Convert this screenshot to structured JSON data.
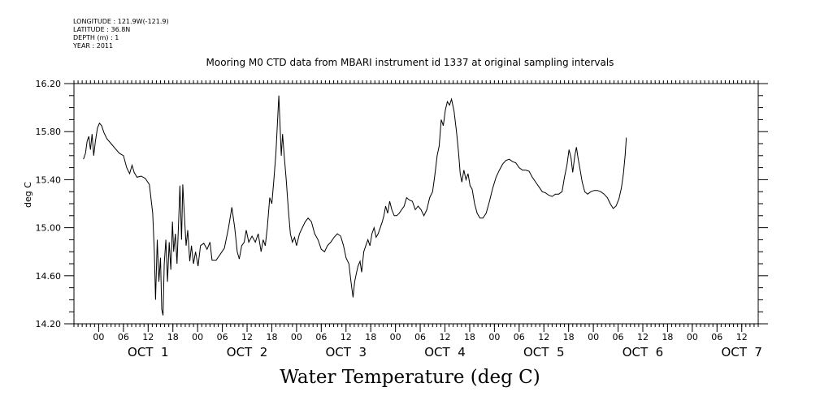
{
  "header": {
    "longitude": "LONGITUDE : 121.9W(-121.9)",
    "latitude": "LATITUDE : 36.8N",
    "depth": "DEPTH (m) : 1",
    "year": "YEAR : 2011"
  },
  "chart_data": {
    "type": "line",
    "title": "Mooring M0 CTD data from MBARI instrument id 1337 at original sampling intervals",
    "xlabel": "Water Temperature (deg C)",
    "ylabel": "deg C",
    "ylim": [
      14.2,
      16.2
    ],
    "xlim": [
      -6,
      160
    ],
    "x_unit": "hours since OCT 1 00:00",
    "y_ticks": [
      "14.20",
      "14.60",
      "15.00",
      "15.40",
      "15.80",
      "16.20"
    ],
    "x_tick_labels": [
      {
        "x": 0,
        "label": "00"
      },
      {
        "x": 6,
        "label": "06"
      },
      {
        "x": 12,
        "label": "12"
      },
      {
        "x": 18,
        "label": "18"
      },
      {
        "x": 24,
        "label": "00"
      },
      {
        "x": 30,
        "label": "06"
      },
      {
        "x": 36,
        "label": "12"
      },
      {
        "x": 42,
        "label": "18"
      },
      {
        "x": 48,
        "label": "00"
      },
      {
        "x": 54,
        "label": "06"
      },
      {
        "x": 60,
        "label": "12"
      },
      {
        "x": 66,
        "label": "18"
      },
      {
        "x": 72,
        "label": "00"
      },
      {
        "x": 78,
        "label": "06"
      },
      {
        "x": 84,
        "label": "12"
      },
      {
        "x": 90,
        "label": "18"
      },
      {
        "x": 96,
        "label": "00"
      },
      {
        "x": 102,
        "label": "06"
      },
      {
        "x": 108,
        "label": "12"
      },
      {
        "x": 114,
        "label": "18"
      },
      {
        "x": 120,
        "label": "00"
      },
      {
        "x": 126,
        "label": "06"
      },
      {
        "x": 132,
        "label": "12"
      },
      {
        "x": 138,
        "label": "18"
      },
      {
        "x": 144,
        "label": "00"
      },
      {
        "x": 150,
        "label": "06"
      },
      {
        "x": 156,
        "label": "12"
      }
    ],
    "day_labels": [
      {
        "x": 12,
        "label": "OCT  1"
      },
      {
        "x": 36,
        "label": "OCT  2"
      },
      {
        "x": 60,
        "label": "OCT  3"
      },
      {
        "x": 84,
        "label": "OCT  4"
      },
      {
        "x": 108,
        "label": "OCT  5"
      },
      {
        "x": 132,
        "label": "OCT  6"
      },
      {
        "x": 156,
        "label": "OCT  7"
      }
    ],
    "series": [
      {
        "points": [
          [
            -3.7,
            15.57
          ],
          [
            -3.2,
            15.62
          ],
          [
            -2.8,
            15.72
          ],
          [
            -2.4,
            15.76
          ],
          [
            -2.0,
            15.65
          ],
          [
            -1.6,
            15.78
          ],
          [
            -1.2,
            15.6
          ],
          [
            -0.8,
            15.72
          ],
          [
            -0.3,
            15.83
          ],
          [
            0.2,
            15.87
          ],
          [
            0.7,
            15.85
          ],
          [
            1.3,
            15.79
          ],
          [
            2.0,
            15.74
          ],
          [
            3.0,
            15.7
          ],
          [
            4.0,
            15.66
          ],
          [
            5.0,
            15.62
          ],
          [
            6.0,
            15.6
          ],
          [
            6.8,
            15.5
          ],
          [
            7.5,
            15.45
          ],
          [
            8.1,
            15.52
          ],
          [
            8.6,
            15.46
          ],
          [
            9.3,
            15.42
          ],
          [
            10.3,
            15.43
          ],
          [
            11.3,
            15.41
          ],
          [
            12.3,
            15.36
          ],
          [
            13.1,
            15.12
          ],
          [
            13.5,
            14.8
          ],
          [
            13.8,
            14.4
          ],
          [
            14.2,
            14.9
          ],
          [
            14.6,
            14.55
          ],
          [
            15.0,
            14.75
          ],
          [
            15.3,
            14.32
          ],
          [
            15.6,
            14.27
          ],
          [
            15.9,
            14.7
          ],
          [
            16.3,
            14.9
          ],
          [
            16.7,
            14.55
          ],
          [
            17.1,
            14.88
          ],
          [
            17.5,
            14.65
          ],
          [
            17.9,
            15.05
          ],
          [
            18.2,
            14.8
          ],
          [
            18.6,
            14.95
          ],
          [
            19.0,
            14.7
          ],
          [
            19.4,
            15.05
          ],
          [
            19.7,
            15.35
          ],
          [
            20.1,
            14.9
          ],
          [
            20.4,
            15.36
          ],
          [
            20.8,
            15.1
          ],
          [
            21.2,
            14.85
          ],
          [
            21.6,
            14.98
          ],
          [
            22.1,
            14.72
          ],
          [
            22.5,
            14.85
          ],
          [
            23.0,
            14.7
          ],
          [
            23.5,
            14.8
          ],
          [
            24.1,
            14.68
          ],
          [
            24.7,
            14.85
          ],
          [
            25.5,
            14.87
          ],
          [
            26.3,
            14.82
          ],
          [
            27.0,
            14.88
          ],
          [
            27.5,
            14.73
          ],
          [
            28.5,
            14.73
          ],
          [
            29.5,
            14.78
          ],
          [
            30.5,
            14.83
          ],
          [
            31.5,
            15.0
          ],
          [
            32.3,
            15.17
          ],
          [
            33.0,
            15.0
          ],
          [
            33.6,
            14.8
          ],
          [
            34.1,
            14.74
          ],
          [
            34.7,
            14.85
          ],
          [
            35.3,
            14.88
          ],
          [
            35.8,
            14.98
          ],
          [
            36.4,
            14.88
          ],
          [
            37.2,
            14.93
          ],
          [
            38.0,
            14.88
          ],
          [
            38.7,
            14.95
          ],
          [
            39.4,
            14.8
          ],
          [
            39.9,
            14.9
          ],
          [
            40.4,
            14.85
          ],
          [
            40.9,
            15.0
          ],
          [
            41.5,
            15.25
          ],
          [
            42.0,
            15.2
          ],
          [
            42.5,
            15.4
          ],
          [
            43.0,
            15.62
          ],
          [
            43.4,
            15.9
          ],
          [
            43.7,
            16.1
          ],
          [
            44.0,
            15.85
          ],
          [
            44.3,
            15.6
          ],
          [
            44.6,
            15.78
          ],
          [
            45.0,
            15.6
          ],
          [
            45.5,
            15.4
          ],
          [
            46.0,
            15.15
          ],
          [
            46.5,
            14.95
          ],
          [
            47.0,
            14.88
          ],
          [
            47.5,
            14.92
          ],
          [
            48.0,
            14.85
          ],
          [
            48.7,
            14.95
          ],
          [
            49.4,
            15.0
          ],
          [
            50.1,
            15.05
          ],
          [
            50.8,
            15.08
          ],
          [
            51.6,
            15.05
          ],
          [
            52.4,
            14.95
          ],
          [
            53.2,
            14.9
          ],
          [
            54.0,
            14.82
          ],
          [
            54.8,
            14.8
          ],
          [
            55.5,
            14.85
          ],
          [
            56.3,
            14.88
          ],
          [
            57.1,
            14.92
          ],
          [
            57.9,
            14.95
          ],
          [
            58.7,
            14.93
          ],
          [
            59.4,
            14.85
          ],
          [
            60.0,
            14.75
          ],
          [
            60.7,
            14.7
          ],
          [
            61.2,
            14.55
          ],
          [
            61.7,
            14.42
          ],
          [
            62.1,
            14.55
          ],
          [
            62.5,
            14.62
          ],
          [
            62.9,
            14.68
          ],
          [
            63.4,
            14.72
          ],
          [
            63.8,
            14.63
          ],
          [
            64.3,
            14.8
          ],
          [
            64.8,
            14.85
          ],
          [
            65.3,
            14.9
          ],
          [
            65.8,
            14.85
          ],
          [
            66.3,
            14.95
          ],
          [
            66.8,
            15.0
          ],
          [
            67.3,
            14.92
          ],
          [
            67.8,
            14.95
          ],
          [
            68.3,
            15.0
          ],
          [
            68.8,
            15.05
          ],
          [
            69.2,
            15.1
          ],
          [
            69.6,
            15.18
          ],
          [
            70.1,
            15.12
          ],
          [
            70.6,
            15.22
          ],
          [
            71.1,
            15.15
          ],
          [
            71.7,
            15.1
          ],
          [
            72.3,
            15.1
          ],
          [
            72.9,
            15.12
          ],
          [
            73.5,
            15.15
          ],
          [
            74.1,
            15.18
          ],
          [
            74.7,
            15.25
          ],
          [
            75.4,
            15.23
          ],
          [
            76.1,
            15.22
          ],
          [
            76.8,
            15.15
          ],
          [
            77.5,
            15.18
          ],
          [
            78.2,
            15.15
          ],
          [
            78.9,
            15.1
          ],
          [
            79.6,
            15.15
          ],
          [
            80.3,
            15.25
          ],
          [
            81.0,
            15.3
          ],
          [
            81.6,
            15.45
          ],
          [
            82.1,
            15.6
          ],
          [
            82.6,
            15.68
          ],
          [
            83.1,
            15.9
          ],
          [
            83.6,
            15.85
          ],
          [
            84.1,
            15.98
          ],
          [
            84.6,
            16.05
          ],
          [
            85.1,
            16.02
          ],
          [
            85.6,
            16.07
          ],
          [
            86.2,
            15.97
          ],
          [
            86.8,
            15.8
          ],
          [
            87.3,
            15.63
          ],
          [
            87.7,
            15.45
          ],
          [
            88.1,
            15.38
          ],
          [
            88.6,
            15.48
          ],
          [
            89.1,
            15.4
          ],
          [
            89.6,
            15.45
          ],
          [
            90.1,
            15.35
          ],
          [
            90.6,
            15.32
          ],
          [
            91.2,
            15.2
          ],
          [
            91.8,
            15.12
          ],
          [
            92.5,
            15.08
          ],
          [
            93.2,
            15.08
          ],
          [
            94.0,
            15.12
          ],
          [
            94.8,
            15.22
          ],
          [
            95.6,
            15.33
          ],
          [
            96.4,
            15.42
          ],
          [
            97.2,
            15.48
          ],
          [
            98.0,
            15.53
          ],
          [
            98.8,
            15.56
          ],
          [
            99.6,
            15.57
          ],
          [
            100.4,
            15.55
          ],
          [
            101.2,
            15.54
          ],
          [
            102.0,
            15.5
          ],
          [
            102.8,
            15.48
          ],
          [
            103.6,
            15.48
          ],
          [
            104.4,
            15.47
          ],
          [
            105.2,
            15.42
          ],
          [
            106.0,
            15.38
          ],
          [
            106.8,
            15.34
          ],
          [
            107.6,
            15.3
          ],
          [
            108.4,
            15.29
          ],
          [
            109.2,
            15.27
          ],
          [
            110.0,
            15.26
          ],
          [
            110.8,
            15.28
          ],
          [
            111.6,
            15.28
          ],
          [
            112.4,
            15.3
          ],
          [
            113.0,
            15.42
          ],
          [
            113.6,
            15.52
          ],
          [
            114.1,
            15.65
          ],
          [
            114.6,
            15.58
          ],
          [
            115.0,
            15.46
          ],
          [
            115.5,
            15.6
          ],
          [
            115.9,
            15.67
          ],
          [
            116.3,
            15.58
          ],
          [
            116.8,
            15.48
          ],
          [
            117.3,
            15.38
          ],
          [
            117.9,
            15.3
          ],
          [
            118.6,
            15.28
          ],
          [
            119.4,
            15.3
          ],
          [
            120.2,
            15.31
          ],
          [
            121.0,
            15.31
          ],
          [
            121.8,
            15.3
          ],
          [
            122.6,
            15.28
          ],
          [
            123.4,
            15.25
          ],
          [
            124.1,
            15.2
          ],
          [
            124.8,
            15.16
          ],
          [
            125.5,
            15.18
          ],
          [
            126.2,
            15.24
          ],
          [
            126.8,
            15.33
          ],
          [
            127.3,
            15.45
          ],
          [
            127.7,
            15.6
          ],
          [
            128.0,
            15.75
          ]
        ]
      }
    ]
  }
}
